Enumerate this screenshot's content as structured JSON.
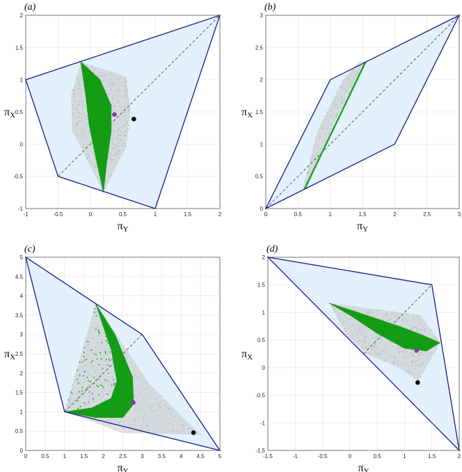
{
  "chart_data": [
    {
      "type": "scatter",
      "panel_label": "(a)",
      "xlabel": "π",
      "xlabel_sub": "Y",
      "ylabel": "π",
      "ylabel_sub": "X",
      "xlim": [
        -1,
        2
      ],
      "ylim": [
        -1,
        2
      ],
      "x_ticks": [
        -1,
        -0.5,
        0,
        0.5,
        1,
        1.5,
        2
      ],
      "y_ticks": [
        -1,
        -0.5,
        0,
        0.5,
        1,
        1.5,
        2
      ],
      "grid": true,
      "outer_polygon": [
        [
          -1,
          1
        ],
        [
          2,
          2
        ],
        [
          1,
          -1
        ],
        [
          -0.5,
          -0.5
        ]
      ],
      "dashed_line": [
        [
          -0.5,
          -0.5
        ],
        [
          2,
          2
        ]
      ],
      "gray_region": [
        [
          -0.15,
          1.28
        ],
        [
          0.55,
          1.05
        ],
        [
          0.62,
          0.5
        ],
        [
          0.55,
          -0.05
        ],
        [
          0.2,
          -0.75
        ],
        [
          -0.05,
          -0.25
        ],
        [
          -0.28,
          0.2
        ],
        [
          -0.3,
          0.75
        ]
      ],
      "green_region": {
        "type": "lens",
        "top": [
          -0.15,
          1.28
        ],
        "bottom": [
          0.2,
          -0.75
        ],
        "right_edge": [
          [
            -0.15,
            1.28
          ],
          [
            0.15,
            1.0
          ],
          [
            0.32,
            0.6
          ],
          [
            0.32,
            0.2
          ],
          [
            0.25,
            -0.3
          ],
          [
            0.2,
            -0.75
          ]
        ],
        "left_edge": [
          [
            0.2,
            -0.75
          ],
          [
            0.08,
            -0.2
          ],
          [
            -0.02,
            0.3
          ],
          [
            -0.08,
            0.8
          ],
          [
            -0.15,
            1.28
          ]
        ]
      },
      "purple_point": [
        0.37,
        0.46
      ],
      "black_point": [
        0.67,
        0.39
      ]
    },
    {
      "type": "scatter",
      "panel_label": "(b)",
      "xlabel": "π",
      "xlabel_sub": "Y",
      "ylabel": "π",
      "ylabel_sub": "X",
      "xlim": [
        0,
        3
      ],
      "ylim": [
        0,
        3
      ],
      "x_ticks": [
        0,
        0.5,
        1,
        1.5,
        2,
        2.5,
        3
      ],
      "y_ticks": [
        0,
        0.5,
        1,
        1.5,
        2,
        2.5,
        3
      ],
      "grid": true,
      "outer_polygon": [
        [
          0,
          0
        ],
        [
          1,
          2
        ],
        [
          3,
          3
        ],
        [
          2,
          1
        ]
      ],
      "dashed_line": [
        [
          0,
          0
        ],
        [
          3,
          3
        ]
      ],
      "gray_region": [
        [
          0.57,
          0.3
        ],
        [
          0.63,
          0.3
        ],
        [
          1.1,
          1.4
        ],
        [
          1.55,
          2.28
        ],
        [
          1.45,
          2.28
        ],
        [
          1.2,
          2.0
        ],
        [
          0.8,
          1.2
        ]
      ],
      "green_region": {
        "type": "line",
        "points": [
          [
            0.6,
            0.3
          ],
          [
            1.55,
            2.28
          ]
        ]
      },
      "purple_point": null,
      "black_point": null
    },
    {
      "type": "scatter",
      "panel_label": "(c)",
      "xlabel": "π",
      "xlabel_sub": "Y",
      "ylabel": "π",
      "ylabel_sub": "X",
      "xlim": [
        0,
        5
      ],
      "ylim": [
        0,
        5
      ],
      "x_ticks": [
        0,
        0.5,
        1,
        1.5,
        2,
        2.5,
        3,
        3.5,
        4,
        4.5,
        5
      ],
      "y_ticks": [
        0,
        0.5,
        1,
        1.5,
        2,
        2.5,
        3,
        3.5,
        4,
        4.5,
        5
      ],
      "grid": true,
      "outer_polygon": [
        [
          0,
          5
        ],
        [
          3,
          3
        ],
        [
          5,
          0
        ],
        [
          1,
          1
        ]
      ],
      "dashed_line": [
        [
          1,
          1
        ],
        [
          3,
          3
        ]
      ],
      "gray_region": [
        [
          1.8,
          3.8
        ],
        [
          1,
          1
        ],
        [
          2.5,
          0.45
        ],
        [
          4.55,
          0.4
        ],
        [
          4.3,
          0.6
        ],
        [
          3.2,
          1.7
        ],
        [
          2.6,
          2.6
        ]
      ],
      "green_region": {
        "type": "crescent",
        "top": [
          1.8,
          3.8
        ],
        "bottom": [
          1,
          1
        ],
        "outer_edge": [
          [
            1.8,
            3.8
          ],
          [
            2.3,
            3.0
          ],
          [
            2.75,
            1.9
          ],
          [
            2.78,
            1.2
          ],
          [
            2.5,
            0.85
          ],
          [
            1.8,
            0.85
          ],
          [
            1,
            1
          ]
        ],
        "inner_edge": [
          [
            1,
            1
          ],
          [
            1.7,
            1.1
          ],
          [
            2.2,
            1.35
          ],
          [
            2.35,
            1.8
          ],
          [
            2.2,
            2.6
          ],
          [
            1.8,
            3.8
          ]
        ]
      },
      "purple_point": [
        2.77,
        1.24
      ],
      "black_point": [
        4.32,
        0.46
      ]
    },
    {
      "type": "scatter",
      "panel_label": "(d)",
      "xlabel": "π",
      "xlabel_sub": "Y",
      "ylabel": "π",
      "ylabel_sub": "X",
      "xlim": [
        -1.5,
        2
      ],
      "ylim": [
        -1.5,
        2
      ],
      "x_ticks": [
        -1.5,
        -1,
        -0.5,
        0,
        0.5,
        1,
        1.5,
        2
      ],
      "y_ticks": [
        -1.5,
        -1,
        -0.5,
        0,
        0.5,
        1,
        1.5,
        2
      ],
      "grid": true,
      "outer_polygon": [
        [
          -1.5,
          2
        ],
        [
          1.5,
          1.5
        ],
        [
          2,
          -1.5
        ]
      ],
      "dashed_line": [
        [
          0.25,
          0.25
        ],
        [
          1.5,
          1.5
        ]
      ],
      "gray_region": [
        [
          -0.38,
          1.17
        ],
        [
          1.3,
          0.95
        ],
        [
          1.65,
          0.45
        ],
        [
          1.25,
          -0.25
        ],
        [
          0.9,
          0.0
        ],
        [
          0.3,
          0.25
        ],
        [
          -0.1,
          0.65
        ]
      ],
      "green_region": {
        "type": "band",
        "upper_edge": [
          [
            -0.38,
            1.17
          ],
          [
            0.3,
            0.95
          ],
          [
            0.9,
            0.75
          ],
          [
            1.3,
            0.6
          ],
          [
            1.65,
            0.45
          ]
        ],
        "lower_edge": [
          [
            1.65,
            0.45
          ],
          [
            1.4,
            0.3
          ],
          [
            1.0,
            0.35
          ],
          [
            0.5,
            0.62
          ],
          [
            0.0,
            0.95
          ],
          [
            -0.38,
            1.17
          ]
        ]
      },
      "purple_point": [
        1.22,
        0.31
      ],
      "black_point": [
        1.24,
        -0.27
      ]
    }
  ],
  "colors": {
    "outer_fill": "#ddeefa",
    "outer_stroke": "#1a1a8c",
    "gray": "#c9c9c9",
    "green": "#159c15",
    "purple": "#7b3fa6",
    "black": "#000000",
    "dashed": "#333333"
  }
}
